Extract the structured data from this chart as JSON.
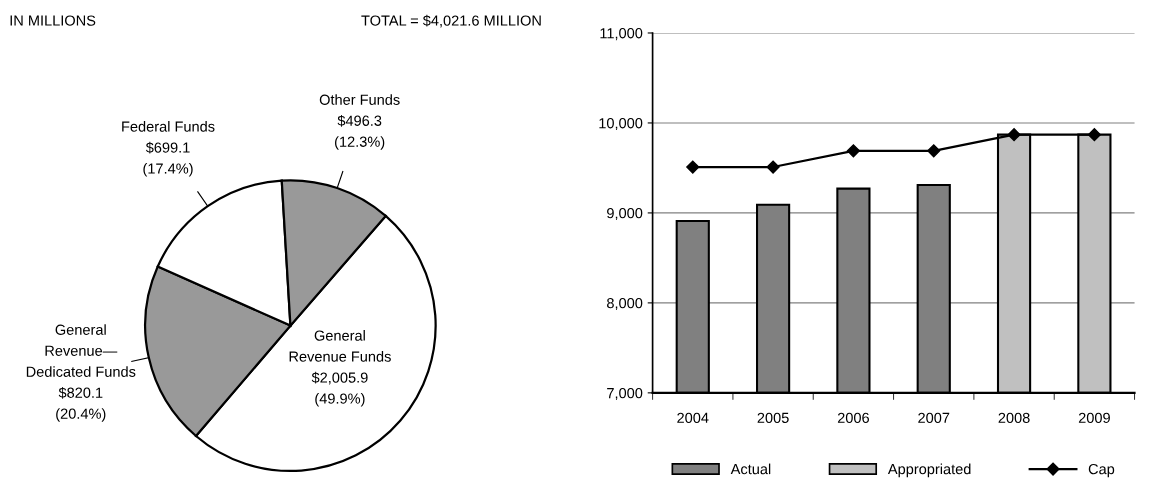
{
  "chart_data": [
    {
      "type": "pie",
      "annotations": [
        "IN MILLIONS",
        "TOTAL = $4,021.6 MILLION"
      ],
      "categories": [
        "General\nRevenue Funds",
        "General\nRevenue—\nDedicated Funds",
        "Federal Funds",
        "Other Funds"
      ],
      "values": [
        2005.9,
        820.1,
        699.1,
        496.3
      ],
      "value_labels": [
        "$2,005.9\n(49.9%)",
        "$820.1\n(20.4%)",
        "$699.1\n(17.4%)",
        "$496.3\n(12.3%)"
      ],
      "colors": [
        "#ffffff",
        "#999999",
        "#ffffff",
        "#999999"
      ]
    },
    {
      "type": "bar",
      "categories": [
        "2004",
        "2005",
        "2006",
        "2007",
        "2008",
        "2009"
      ],
      "series": [
        {
          "name": "Actual",
          "type": "bar",
          "color": "#808080",
          "values": [
            8910,
            9090,
            9270,
            9310,
            null,
            null
          ]
        },
        {
          "name": "Appropriated",
          "type": "bar",
          "color": "#c0c0c0",
          "values": [
            null,
            null,
            null,
            null,
            9870,
            9870
          ]
        },
        {
          "name": "Cap",
          "type": "line",
          "color": "#000000",
          "marker": "diamond",
          "values": [
            9510,
            9510,
            9690,
            9690,
            9870,
            9870
          ]
        }
      ],
      "ylim": [
        7000,
        11000
      ],
      "yticks": [
        {
          "value": 7000,
          "label": "7,000"
        },
        {
          "value": 8000,
          "label": "8,000"
        },
        {
          "value": 9000,
          "label": "9,000"
        },
        {
          "value": 10000,
          "label": "10,000"
        },
        {
          "value": 11000,
          "label": "11,000"
        }
      ],
      "grid": "y",
      "legend": "bottom"
    }
  ]
}
